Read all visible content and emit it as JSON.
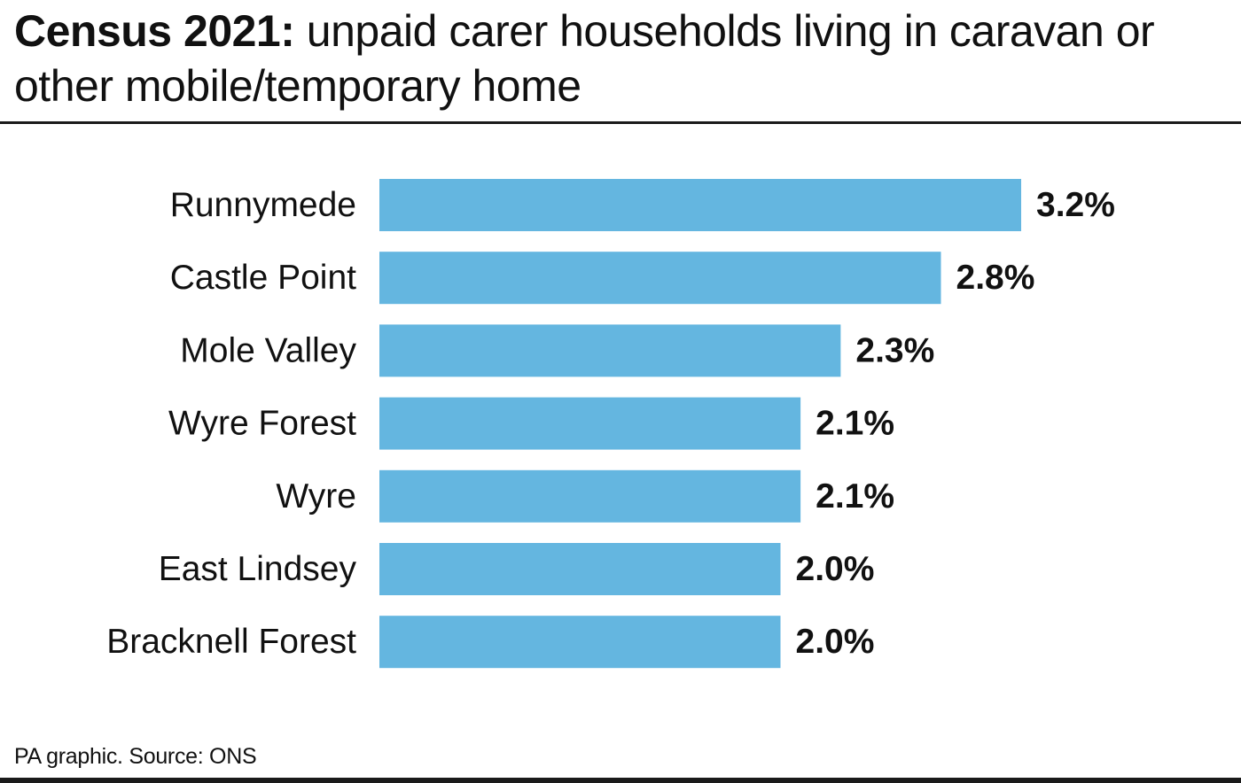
{
  "title": {
    "bold": "Census 2021:",
    "rest": " unpaid carer households living in caravan or other mobile/temporary home"
  },
  "source": "PA graphic. Source: ONS",
  "colors": {
    "bar": "#64b6e0",
    "text": "#111111",
    "rule": "#1a1a1a"
  },
  "chart_data": {
    "type": "bar",
    "orientation": "horizontal",
    "categories": [
      "Runnymede",
      "Castle Point",
      "Mole Valley",
      "Wyre Forest",
      "Wyre",
      "East Lindsey",
      "Bracknell Forest"
    ],
    "values": [
      3.2,
      2.8,
      2.3,
      2.1,
      2.1,
      2.0,
      2.0
    ],
    "value_labels": [
      "3.2%",
      "2.8%",
      "2.3%",
      "2.1%",
      "2.1%",
      "2.0%",
      "2.0%"
    ],
    "xlim": [
      0,
      3.2
    ],
    "grid": false,
    "legend": "none"
  }
}
